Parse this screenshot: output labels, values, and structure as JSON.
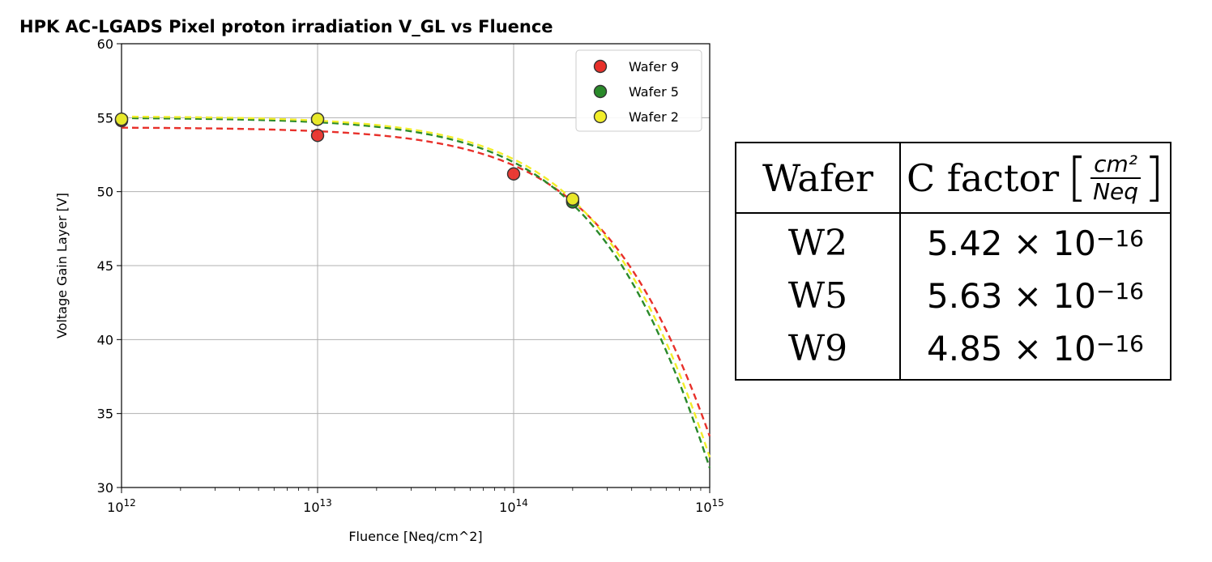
{
  "chart_data": {
    "type": "scatter",
    "title": "HPK AC-LGADS Pixel proton irradiation V_GL vs Fluence",
    "xlabel": "Fluence [Neq/cm^2]",
    "ylabel": "Voltage Gain Layer [V]",
    "xscale": "log",
    "xlim": [
      1000000000000.0,
      1000000000000000.0
    ],
    "ylim": [
      30,
      60
    ],
    "grid": true,
    "legend_position": "top-right",
    "x_ticks": [
      {
        "value": 1000000000000.0,
        "base": "10",
        "exp": "12"
      },
      {
        "value": 10000000000000.0,
        "base": "10",
        "exp": "13"
      },
      {
        "value": 100000000000000.0,
        "base": "10",
        "exp": "14"
      },
      {
        "value": 1000000000000000.0,
        "base": "10",
        "exp": "15"
      }
    ],
    "y_ticks": [
      30,
      35,
      40,
      45,
      50,
      55,
      60
    ],
    "series": [
      {
        "name": "Wafer 9",
        "color": "#e8302a",
        "x": [
          1000000000000.0,
          10000000000000.0,
          100000000000000.0,
          200000000000000.0
        ],
        "y": [
          54.8,
          53.8,
          51.2,
          49.4
        ],
        "fit": {
          "v0": 54.35,
          "c": 4.85e-16
        }
      },
      {
        "name": "Wafer 5",
        "color": "#2a8a2a",
        "x": [
          1000000000000.0,
          10000000000000.0,
          200000000000000.0
        ],
        "y": [
          54.9,
          54.9,
          49.3
        ],
        "fit": {
          "v0": 55.0,
          "c": 5.63e-16
        }
      },
      {
        "name": "Wafer 2",
        "color": "#f2ee2a",
        "x": [
          1000000000000.0,
          10000000000000.0,
          200000000000000.0
        ],
        "y": [
          54.9,
          54.9,
          49.5
        ],
        "fit": {
          "v0": 55.1,
          "c": 5.42e-16
        }
      }
    ]
  },
  "table": {
    "header_wafer": "Wafer",
    "header_cfactor": "C factor",
    "unit_num": "cm²",
    "unit_den": "Neq",
    "bracket_right": "]",
    "rows": [
      {
        "wafer": "W2",
        "mantissa": "5.42",
        "times": "×",
        "base": "10",
        "exp": "−16"
      },
      {
        "wafer": "W5",
        "mantissa": "5.63",
        "times": "×",
        "base": "10",
        "exp": "−16"
      },
      {
        "wafer": "W9",
        "mantissa": "4.85",
        "times": "×",
        "base": "10",
        "exp": "−16"
      }
    ]
  }
}
